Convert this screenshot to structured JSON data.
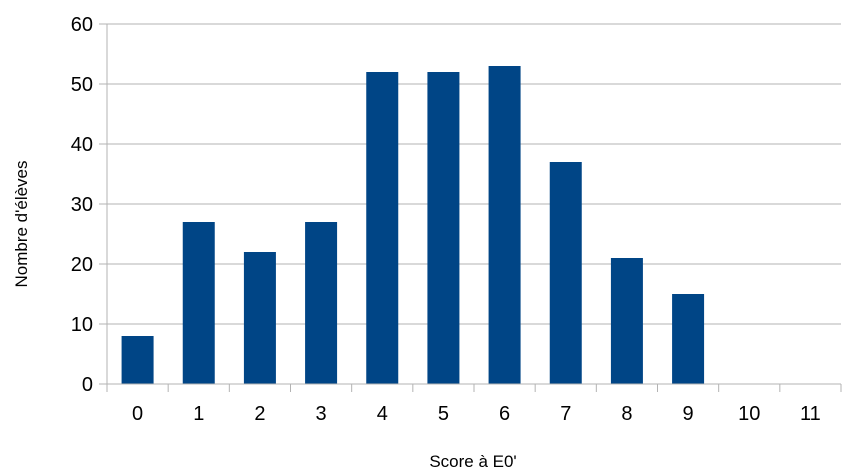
{
  "chart_data": {
    "type": "bar",
    "title": "",
    "xlabel": "Score à E0'",
    "ylabel": "Nombre d'élèves",
    "categories": [
      "0",
      "1",
      "2",
      "3",
      "4",
      "5",
      "6",
      "7",
      "8",
      "9",
      "10",
      "11"
    ],
    "values": [
      8,
      27,
      22,
      27,
      52,
      52,
      53,
      37,
      21,
      15,
      0,
      0
    ],
    "ylim": [
      0,
      60
    ],
    "yticks": [
      0,
      10,
      20,
      30,
      40,
      50,
      60
    ],
    "grid": true,
    "legend": "none",
    "colors": {
      "bar": "#004586",
      "grid": "#b3b3b3",
      "axis": "#b3b3b3"
    }
  }
}
